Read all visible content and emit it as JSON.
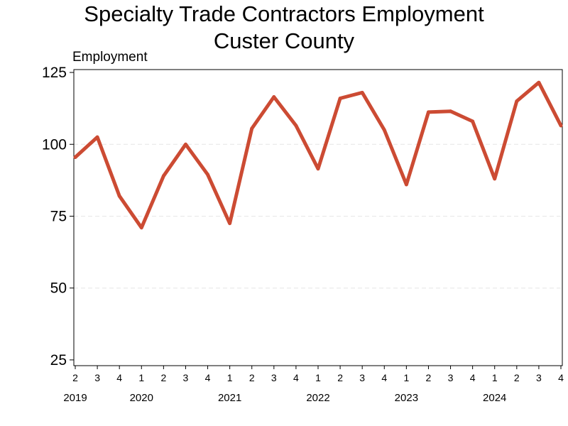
{
  "chart_data": {
    "type": "line",
    "title_line1": "Specialty Trade Contractors Employment",
    "title_line2": "Custer County",
    "ylabel": "Employment",
    "xlabel": "",
    "ylim": [
      23,
      126
    ],
    "yticks": [
      25,
      50,
      75,
      100,
      125
    ],
    "grid": "horizontal dashed",
    "legend": "none",
    "line_color": "#cc4b33",
    "grid_color": "#e6e6e6",
    "quarters": [
      "2",
      "3",
      "4",
      "1",
      "2",
      "3",
      "4",
      "1",
      "2",
      "3",
      "4",
      "1",
      "2",
      "3",
      "4",
      "1",
      "2",
      "3",
      "4",
      "1",
      "2",
      "3",
      "4"
    ],
    "years": [
      {
        "label": "2019",
        "index": 0
      },
      {
        "label": "2020",
        "index": 3
      },
      {
        "label": "2021",
        "index": 7
      },
      {
        "label": "2022",
        "index": 11
      },
      {
        "label": "2023",
        "index": 15
      },
      {
        "label": "2024",
        "index": 19
      }
    ],
    "series": [
      {
        "values": [
          95.5,
          102.5,
          82,
          71,
          89,
          100,
          89.5,
          72.5,
          105.5,
          116.5,
          106.5,
          91.5,
          116,
          118,
          105,
          86,
          111.2,
          111.5,
          108,
          88,
          115,
          121.5,
          106.5
        ]
      }
    ]
  }
}
